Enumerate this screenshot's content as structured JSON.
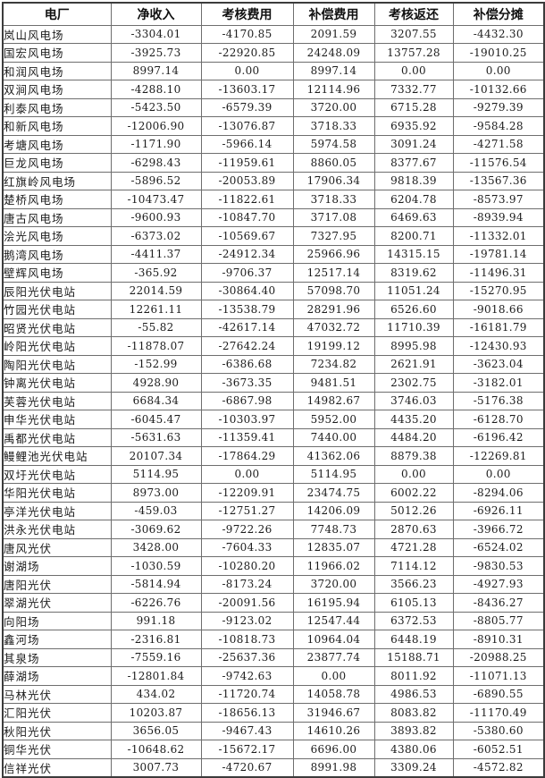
{
  "table": {
    "columns": [
      "电厂",
      "净收入",
      "考核费用",
      "补偿费用",
      "考核返还",
      "补偿分摊"
    ],
    "rows": [
      {
        "plant": "岚山风电场",
        "values": [
          "-3304.01",
          "-4170.85",
          "2091.59",
          "3207.55",
          "-4432.30"
        ]
      },
      {
        "plant": "国宏风电场",
        "values": [
          "-3925.73",
          "-22920.85",
          "24248.09",
          "13757.28",
          "-19010.25"
        ]
      },
      {
        "plant": "和润风电场",
        "values": [
          "8997.14",
          "0.00",
          "8997.14",
          "0.00",
          "0.00"
        ]
      },
      {
        "plant": "双涧风电场",
        "values": [
          "-4288.10",
          "-13603.17",
          "12114.96",
          "7332.77",
          "-10132.66"
        ]
      },
      {
        "plant": "利泰风电场",
        "values": [
          "-5423.50",
          "-6579.39",
          "3720.00",
          "6715.28",
          "-9279.39"
        ]
      },
      {
        "plant": "和新风电场",
        "values": [
          "-12006.90",
          "-13076.87",
          "3718.33",
          "6935.92",
          "-9584.28"
        ]
      },
      {
        "plant": "考塘风电场",
        "values": [
          "-1171.90",
          "-5966.14",
          "5974.58",
          "3091.24",
          "-4271.58"
        ]
      },
      {
        "plant": "巨龙风电场",
        "values": [
          "-6298.43",
          "-11959.61",
          "8860.05",
          "8377.67",
          "-11576.54"
        ]
      },
      {
        "plant": "红旗岭风电场",
        "values": [
          "-5896.52",
          "-20053.89",
          "17906.34",
          "9818.39",
          "-13567.36"
        ]
      },
      {
        "plant": "楚桥风电场",
        "values": [
          "-10473.47",
          "-11822.61",
          "3718.33",
          "6204.78",
          "-8573.97"
        ]
      },
      {
        "plant": "唐古风电场",
        "values": [
          "-9600.93",
          "-10847.70",
          "3717.08",
          "6469.63",
          "-8939.94"
        ]
      },
      {
        "plant": "浍光风电场",
        "values": [
          "-6373.02",
          "-10569.67",
          "7327.95",
          "8200.71",
          "-11332.01"
        ]
      },
      {
        "plant": "鹅湾风电场",
        "values": [
          "-4411.37",
          "-24912.34",
          "25966.96",
          "14315.15",
          "-19781.14"
        ]
      },
      {
        "plant": "壁辉风电场",
        "values": [
          "-365.92",
          "-9706.37",
          "12517.14",
          "8319.62",
          "-11496.31"
        ]
      },
      {
        "plant": "辰阳光伏电站",
        "values": [
          "22014.59",
          "-30864.40",
          "57098.70",
          "11051.24",
          "-15270.95"
        ]
      },
      {
        "plant": "竹园光伏电站",
        "values": [
          "12261.11",
          "-13538.79",
          "28291.96",
          "6526.60",
          "-9018.66"
        ]
      },
      {
        "plant": "昭贤光伏电站",
        "values": [
          "-55.82",
          "-42617.14",
          "47032.72",
          "11710.39",
          "-16181.79"
        ]
      },
      {
        "plant": "岭阳光伏电站",
        "values": [
          "-11878.07",
          "-27642.24",
          "19199.12",
          "8995.98",
          "-12430.93"
        ]
      },
      {
        "plant": "陶阳光伏电站",
        "values": [
          "-152.99",
          "-6386.68",
          "7234.82",
          "2621.91",
          "-3623.04"
        ]
      },
      {
        "plant": "钟离光伏电站",
        "values": [
          "4928.90",
          "-3673.35",
          "9481.51",
          "2302.75",
          "-3182.01"
        ]
      },
      {
        "plant": "芙蓉光伏电站",
        "values": [
          "6684.34",
          "-6867.98",
          "14982.67",
          "3746.03",
          "-5176.38"
        ]
      },
      {
        "plant": "申华光伏电站",
        "values": [
          "-6045.47",
          "-10303.97",
          "5952.00",
          "4435.20",
          "-6128.70"
        ]
      },
      {
        "plant": "禹都光伏电站",
        "values": [
          "-5631.63",
          "-11359.41",
          "7440.00",
          "4484.20",
          "-6196.42"
        ]
      },
      {
        "plant": "鳗鲤池光伏电站",
        "values": [
          "20107.34",
          "-17864.29",
          "41362.06",
          "8879.38",
          "-12269.81"
        ]
      },
      {
        "plant": "双圩光伏电站",
        "values": [
          "5114.95",
          "0.00",
          "5114.95",
          "0.00",
          "0.00"
        ]
      },
      {
        "plant": "华阳光伏电站",
        "values": [
          "8973.00",
          "-12209.91",
          "23474.75",
          "6002.22",
          "-8294.06"
        ]
      },
      {
        "plant": "亭洋光伏电站",
        "values": [
          "-459.03",
          "-12751.27",
          "14206.09",
          "5012.26",
          "-6926.11"
        ]
      },
      {
        "plant": "洪永光伏电站",
        "values": [
          "-3069.62",
          "-9722.26",
          "7748.73",
          "2870.63",
          "-3966.72"
        ]
      },
      {
        "plant": "唐风光伏",
        "values": [
          "3428.00",
          "-7604.33",
          "12835.07",
          "4721.28",
          "-6524.02"
        ]
      },
      {
        "plant": "谢湖场",
        "values": [
          "-1030.59",
          "-10280.20",
          "11966.02",
          "7114.12",
          "-9830.53"
        ]
      },
      {
        "plant": "唐阳光伏",
        "values": [
          "-5814.94",
          "-8173.24",
          "3720.00",
          "3566.23",
          "-4927.93"
        ]
      },
      {
        "plant": "翠湖光伏",
        "values": [
          "-6226.76",
          "-20091.56",
          "16195.94",
          "6105.13",
          "-8436.27"
        ]
      },
      {
        "plant": "向阳场",
        "values": [
          "991.18",
          "-9123.02",
          "12547.44",
          "6372.53",
          "-8805.77"
        ]
      },
      {
        "plant": "鑫河场",
        "values": [
          "-2316.81",
          "-10818.73",
          "10964.04",
          "6448.19",
          "-8910.31"
        ]
      },
      {
        "plant": "其泉场",
        "values": [
          "-7559.16",
          "-25637.36",
          "23877.74",
          "15188.71",
          "-20988.25"
        ]
      },
      {
        "plant": "薛湖场",
        "values": [
          "-12801.84",
          "-9742.63",
          "0.00",
          "8011.92",
          "-11071.13"
        ]
      },
      {
        "plant": "马林光伏",
        "values": [
          "434.02",
          "-11720.74",
          "14058.78",
          "4986.53",
          "-6890.55"
        ]
      },
      {
        "plant": "汇阳光伏",
        "values": [
          "10203.87",
          "-18656.13",
          "31946.67",
          "8083.82",
          "-11170.49"
        ]
      },
      {
        "plant": "秋阳光伏",
        "values": [
          "3656.05",
          "-9467.43",
          "14610.26",
          "3893.82",
          "-5380.60"
        ]
      },
      {
        "plant": "铜华光伏",
        "values": [
          "-10648.62",
          "-15672.17",
          "6696.00",
          "4380.06",
          "-6052.51"
        ]
      },
      {
        "plant": "信祥光伏",
        "values": [
          "3007.73",
          "-4720.67",
          "8991.98",
          "3309.24",
          "-4572.82"
        ]
      }
    ]
  }
}
